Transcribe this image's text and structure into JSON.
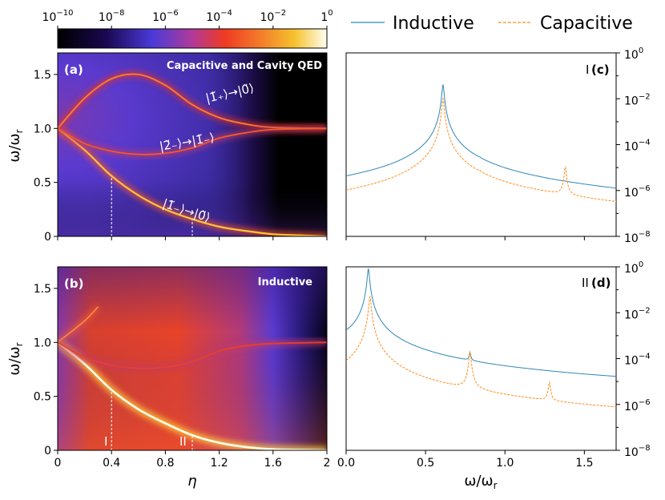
{
  "colors": {
    "inductive": "#2e86b8",
    "capacitive": "#ff8c1a",
    "colormap": [
      "#000000",
      "#2a0a6e",
      "#5a3fd6",
      "#9e3a9e",
      "#e0302a",
      "#f2622a",
      "#f7b52a",
      "#fffff0"
    ]
  },
  "colorbar": {
    "ticks": [
      {
        "base": "10",
        "exp": "−10"
      },
      {
        "base": "10",
        "exp": "−8"
      },
      {
        "base": "10",
        "exp": "−6"
      },
      {
        "base": "10",
        "exp": "−4"
      },
      {
        "base": "10",
        "exp": "−2"
      },
      {
        "base": "1",
        "exp": "0"
      }
    ]
  },
  "legend": {
    "inductive": "Inductive",
    "capacitive": "Capacitive"
  },
  "panel_a": {
    "label": "(a)",
    "title": "Capacitive and Cavity QED",
    "transitions": [
      "|1̃₊⟩→|0̃⟩",
      "|2̃₋⟩→|1̃₋⟩",
      "|1̃₋⟩→|0̃⟩"
    ],
    "ylabel": "ω/ω",
    "ylabel_sub": "r"
  },
  "panel_b": {
    "label": "(b)",
    "title": "Inductive",
    "markers": [
      "I",
      "II"
    ],
    "xlabel": "η",
    "ylabel": "ω/ω",
    "ylabel_sub": "r"
  },
  "panel_c": {
    "label": "(c)",
    "marker": "I"
  },
  "panel_d": {
    "label": "(d)",
    "marker": "II"
  },
  "spectra_xlabel": "ω/ω",
  "spectra_xlabel_sub": "r",
  "chart_data": [
    {
      "type": "heatmap",
      "panel": "a",
      "xlim": [
        0,
        2
      ],
      "ylim": [
        0,
        1.7
      ],
      "xticks": [
        "0",
        "0.4",
        "0.8",
        "1.2",
        "1.6",
        "2"
      ],
      "yticks": [
        "0",
        "0.5",
        "1.0",
        "1.5"
      ],
      "scale": "log",
      "curves": {
        "lower_polariton": [
          [
            0,
            1.0
          ],
          [
            0.2,
            0.8
          ],
          [
            0.4,
            0.56
          ],
          [
            0.6,
            0.38
          ],
          [
            0.8,
            0.25
          ],
          [
            1.0,
            0.16
          ],
          [
            1.2,
            0.09
          ],
          [
            1.4,
            0.05
          ],
          [
            1.6,
            0.02
          ],
          [
            1.8,
            0.01
          ],
          [
            2.0,
            0.0
          ]
        ],
        "upper_polariton": [
          [
            0,
            1.0
          ],
          [
            0.2,
            1.28
          ],
          [
            0.4,
            1.46
          ],
          [
            0.6,
            1.5
          ],
          [
            0.8,
            1.4
          ],
          [
            1.0,
            1.22
          ],
          [
            1.2,
            1.1
          ],
          [
            1.4,
            1.04
          ],
          [
            1.6,
            1.01
          ],
          [
            2.0,
            1.0
          ]
        ],
        "two_to_one": [
          [
            0,
            1.0
          ],
          [
            0.2,
            0.86
          ],
          [
            0.4,
            0.79
          ],
          [
            0.6,
            0.76
          ],
          [
            0.8,
            0.77
          ],
          [
            1.0,
            0.82
          ],
          [
            1.2,
            0.91
          ],
          [
            1.4,
            0.96
          ],
          [
            1.6,
            0.99
          ],
          [
            2.0,
            1.0
          ]
        ]
      },
      "dashed_markers_eta": [
        0.4,
        1.0
      ]
    },
    {
      "type": "heatmap",
      "panel": "b",
      "xlim": [
        0,
        2
      ],
      "ylim": [
        0,
        1.7
      ],
      "xticks": [
        "0",
        "0.4",
        "0.8",
        "1.2",
        "1.6",
        "2"
      ],
      "yticks": [
        "0",
        "0.5",
        "1.0",
        "1.5"
      ],
      "scale": "log",
      "curves": {
        "lower_polariton": [
          [
            0,
            1.0
          ],
          [
            0.2,
            0.8
          ],
          [
            0.4,
            0.56
          ],
          [
            0.6,
            0.38
          ],
          [
            0.8,
            0.25
          ],
          [
            1.0,
            0.14
          ],
          [
            1.2,
            0.07
          ],
          [
            1.4,
            0.03
          ],
          [
            1.6,
            0.01
          ],
          [
            2.0,
            0.0
          ]
        ],
        "upper_branch": [
          [
            0,
            1.0
          ],
          [
            0.2,
            1.2
          ],
          [
            0.3,
            1.33
          ]
        ],
        "two_to_one": [
          [
            0,
            1.0
          ],
          [
            0.2,
            0.86
          ],
          [
            0.4,
            0.79
          ],
          [
            0.6,
            0.76
          ],
          [
            0.8,
            0.77
          ],
          [
            1.0,
            0.82
          ],
          [
            1.2,
            0.92
          ],
          [
            1.4,
            0.97
          ],
          [
            1.6,
            0.99
          ],
          [
            2.0,
            1.0
          ]
        ]
      },
      "dashed_markers_eta": [
        0.4,
        1.0
      ]
    },
    {
      "type": "line",
      "panel": "c",
      "xlim": [
        0,
        1.7
      ],
      "ylim_log10": [
        -8,
        0
      ],
      "yscale": "log",
      "yticks": [
        {
          "base": "10",
          "exp": "0"
        },
        {
          "base": "10",
          "exp": "−2"
        },
        {
          "base": "10",
          "exp": "−4"
        },
        {
          "base": "10",
          "exp": "−6"
        },
        {
          "base": "10",
          "exp": "−8"
        }
      ],
      "series": [
        {
          "name": "Inductive",
          "peaks": [
            [
              0.61,
              -1.4
            ],
            [
              0.84,
              -5.6
            ],
            [
              1.38,
              -6.8
            ]
          ],
          "background_log10": [
            [
              0.0,
              -6.3
            ],
            [
              0.3,
              -5.9
            ],
            [
              0.5,
              -5.2
            ],
            [
              0.7,
              -5.4
            ],
            [
              1.0,
              -6.4
            ],
            [
              1.3,
              -6.8
            ],
            [
              1.7,
              -7.2
            ]
          ]
        },
        {
          "name": "Capacitive",
          "peaks": [
            [
              0.61,
              -2.0
            ],
            [
              0.84,
              -6.0
            ],
            [
              1.38,
              -5.0
            ]
          ],
          "background_log10": [
            [
              0.0,
              -7.1
            ],
            [
              0.3,
              -6.7
            ],
            [
              0.5,
              -6.0
            ],
            [
              0.7,
              -6.2
            ],
            [
              1.0,
              -7.0
            ],
            [
              1.3,
              -7.1
            ],
            [
              1.7,
              -7.6
            ]
          ]
        }
      ]
    },
    {
      "type": "line",
      "panel": "d",
      "xlim": [
        0,
        1.7
      ],
      "ylim_log10": [
        -8,
        0
      ],
      "yscale": "log",
      "xticks": [
        "0.0",
        "0.5",
        "1.0",
        "1.5"
      ],
      "yticks": [
        {
          "base": "10",
          "exp": "0"
        },
        {
          "base": "10",
          "exp": "−2"
        },
        {
          "base": "10",
          "exp": "−4"
        },
        {
          "base": "10",
          "exp": "−6"
        },
        {
          "base": "10",
          "exp": "−8"
        }
      ],
      "series": [
        {
          "name": "Inductive",
          "peaks": [
            [
              0.14,
              -0.1
            ],
            [
              0.78,
              -4.0
            ]
          ],
          "background_log10": [
            [
              0.0,
              -3.5
            ],
            [
              0.3,
              -4.3
            ],
            [
              0.6,
              -4.7
            ],
            [
              1.0,
              -5.0
            ],
            [
              1.4,
              -5.2
            ],
            [
              1.7,
              -5.3
            ]
          ]
        },
        {
          "name": "Capacitive",
          "peaks": [
            [
              0.15,
              -1.3
            ],
            [
              0.37,
              -5.8
            ],
            [
              0.78,
              -3.7
            ],
            [
              1.28,
              -5.1
            ]
          ],
          "background_log10": [
            [
              0.0,
              -5.7
            ],
            [
              0.3,
              -6.4
            ],
            [
              0.6,
              -6.2
            ],
            [
              1.0,
              -6.7
            ],
            [
              1.5,
              -7.6
            ],
            [
              1.7,
              -7.8
            ]
          ]
        }
      ]
    }
  ]
}
